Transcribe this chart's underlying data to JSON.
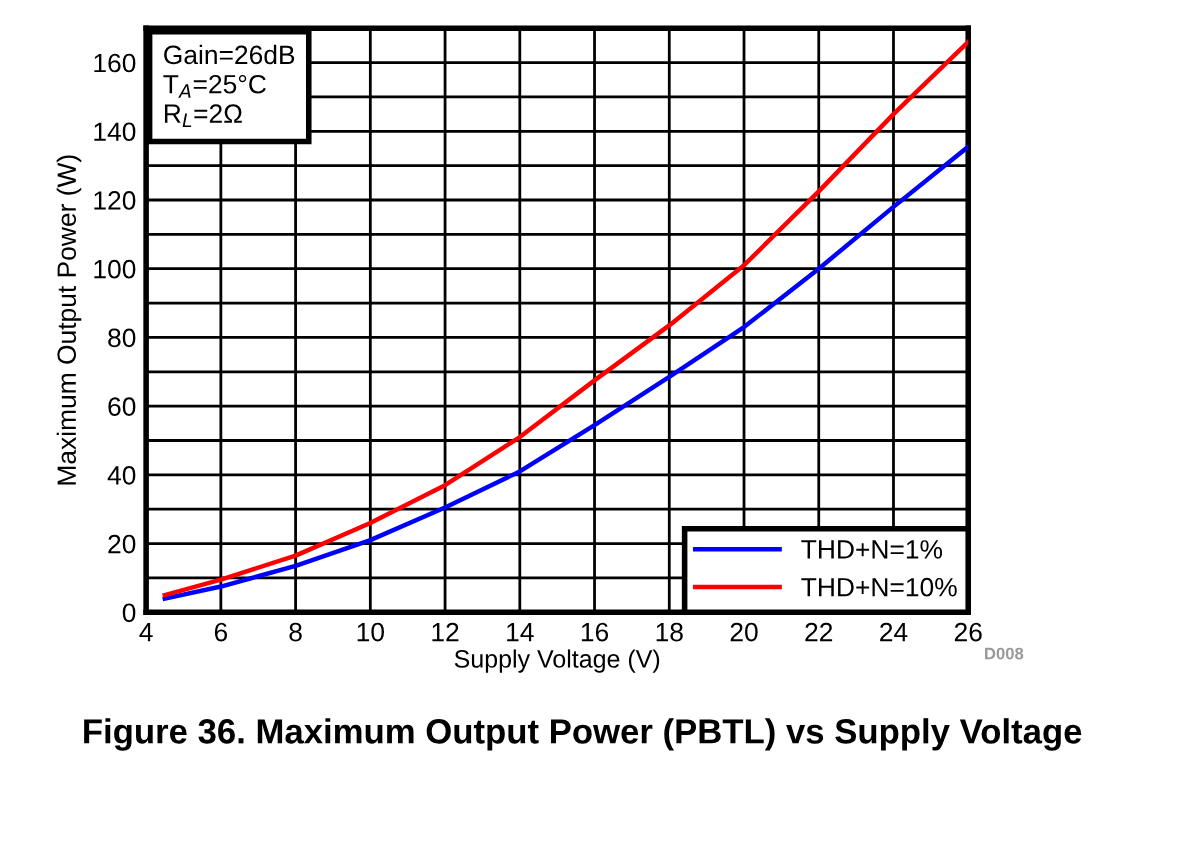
{
  "chart_data": {
    "type": "line",
    "title": "Figure 36. Maximum Output Power (PBTL) vs Supply Voltage",
    "xlabel": "Supply Voltage (V)",
    "ylabel": "Maximum Output Power (W)",
    "x": [
      4.5,
      6,
      8,
      10,
      12,
      14,
      16,
      18,
      20,
      22,
      24,
      26
    ],
    "series": [
      {
        "name": "THD+N=1%",
        "color": "#0000ff",
        "values": [
          4,
          7.5,
          13.5,
          21,
          30.5,
          41,
          54.5,
          68.5,
          83,
          100,
          118,
          135.5
        ]
      },
      {
        "name": "THD+N=10%",
        "color": "#ff0000",
        "values": [
          5,
          9.5,
          16.5,
          26,
          37,
          51,
          67.5,
          83.5,
          101,
          122.5,
          145,
          166
        ]
      }
    ],
    "xlim": [
      4,
      26
    ],
    "xticks": [
      4,
      6,
      8,
      10,
      12,
      14,
      16,
      18,
      20,
      22,
      24,
      26
    ],
    "ylim": [
      0,
      170
    ],
    "yticks": [
      0,
      {
        "value": 10,
        "label": null
      },
      20,
      {
        "value": 30,
        "label": null
      },
      40,
      {
        "value": 50,
        "label": null
      },
      60,
      {
        "value": 70,
        "label": null
      },
      80,
      {
        "value": 90,
        "label": null
      },
      100,
      {
        "value": 110,
        "label": null
      },
      120,
      {
        "value": 130,
        "label": null
      },
      140,
      {
        "value": 150,
        "label": null
      },
      160
    ],
    "grid": true,
    "legend": "bottom right",
    "marker": "none",
    "line_style": "solid",
    "annotations": [
      "Gain=26dB\nT$_{A}$=25°C\nR$_{L}$=2Ω",
      "D008"
    ]
  }
}
